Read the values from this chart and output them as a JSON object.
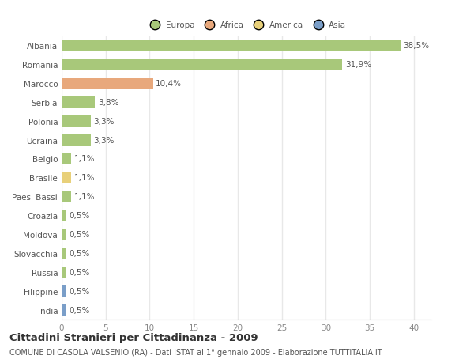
{
  "countries": [
    "Albania",
    "Romania",
    "Marocco",
    "Serbia",
    "Polonia",
    "Ucraina",
    "Belgio",
    "Brasile",
    "Paesi Bassi",
    "Croazia",
    "Moldova",
    "Slovacchia",
    "Russia",
    "Filippine",
    "India"
  ],
  "values": [
    38.5,
    31.9,
    10.4,
    3.8,
    3.3,
    3.3,
    1.1,
    1.1,
    1.1,
    0.5,
    0.5,
    0.5,
    0.5,
    0.5,
    0.5
  ],
  "labels": [
    "38,5%",
    "31,9%",
    "10,4%",
    "3,8%",
    "3,3%",
    "3,3%",
    "1,1%",
    "1,1%",
    "1,1%",
    "0,5%",
    "0,5%",
    "0,5%",
    "0,5%",
    "0,5%",
    "0,5%"
  ],
  "continents": [
    "Europa",
    "Europa",
    "Africa",
    "Europa",
    "Europa",
    "Europa",
    "Europa",
    "America",
    "Europa",
    "Europa",
    "Europa",
    "Europa",
    "Europa",
    "Asia",
    "Asia"
  ],
  "continent_colors": {
    "Europa": "#a8c87a",
    "Africa": "#e8a87c",
    "America": "#e8d07a",
    "Asia": "#7a9ec8"
  },
  "legend_order": [
    "Europa",
    "Africa",
    "America",
    "Asia"
  ],
  "legend_colors": [
    "#a8c87a",
    "#e8a87c",
    "#e8d07a",
    "#7a9ec8"
  ],
  "xlim": [
    0,
    42
  ],
  "xticks": [
    0,
    5,
    10,
    15,
    20,
    25,
    30,
    35,
    40
  ],
  "title": "Cittadini Stranieri per Cittadinanza - 2009",
  "subtitle": "COMUNE DI CASOLA VALSENIO (RA) - Dati ISTAT al 1° gennaio 2009 - Elaborazione TUTTITALIA.IT",
  "background_color": "#ffffff",
  "grid_color": "#e8e8e8",
  "bar_height": 0.6,
  "label_fontsize": 7.5,
  "ytick_fontsize": 7.5,
  "xtick_fontsize": 7.5,
  "title_fontsize": 9.5,
  "subtitle_fontsize": 7.0
}
